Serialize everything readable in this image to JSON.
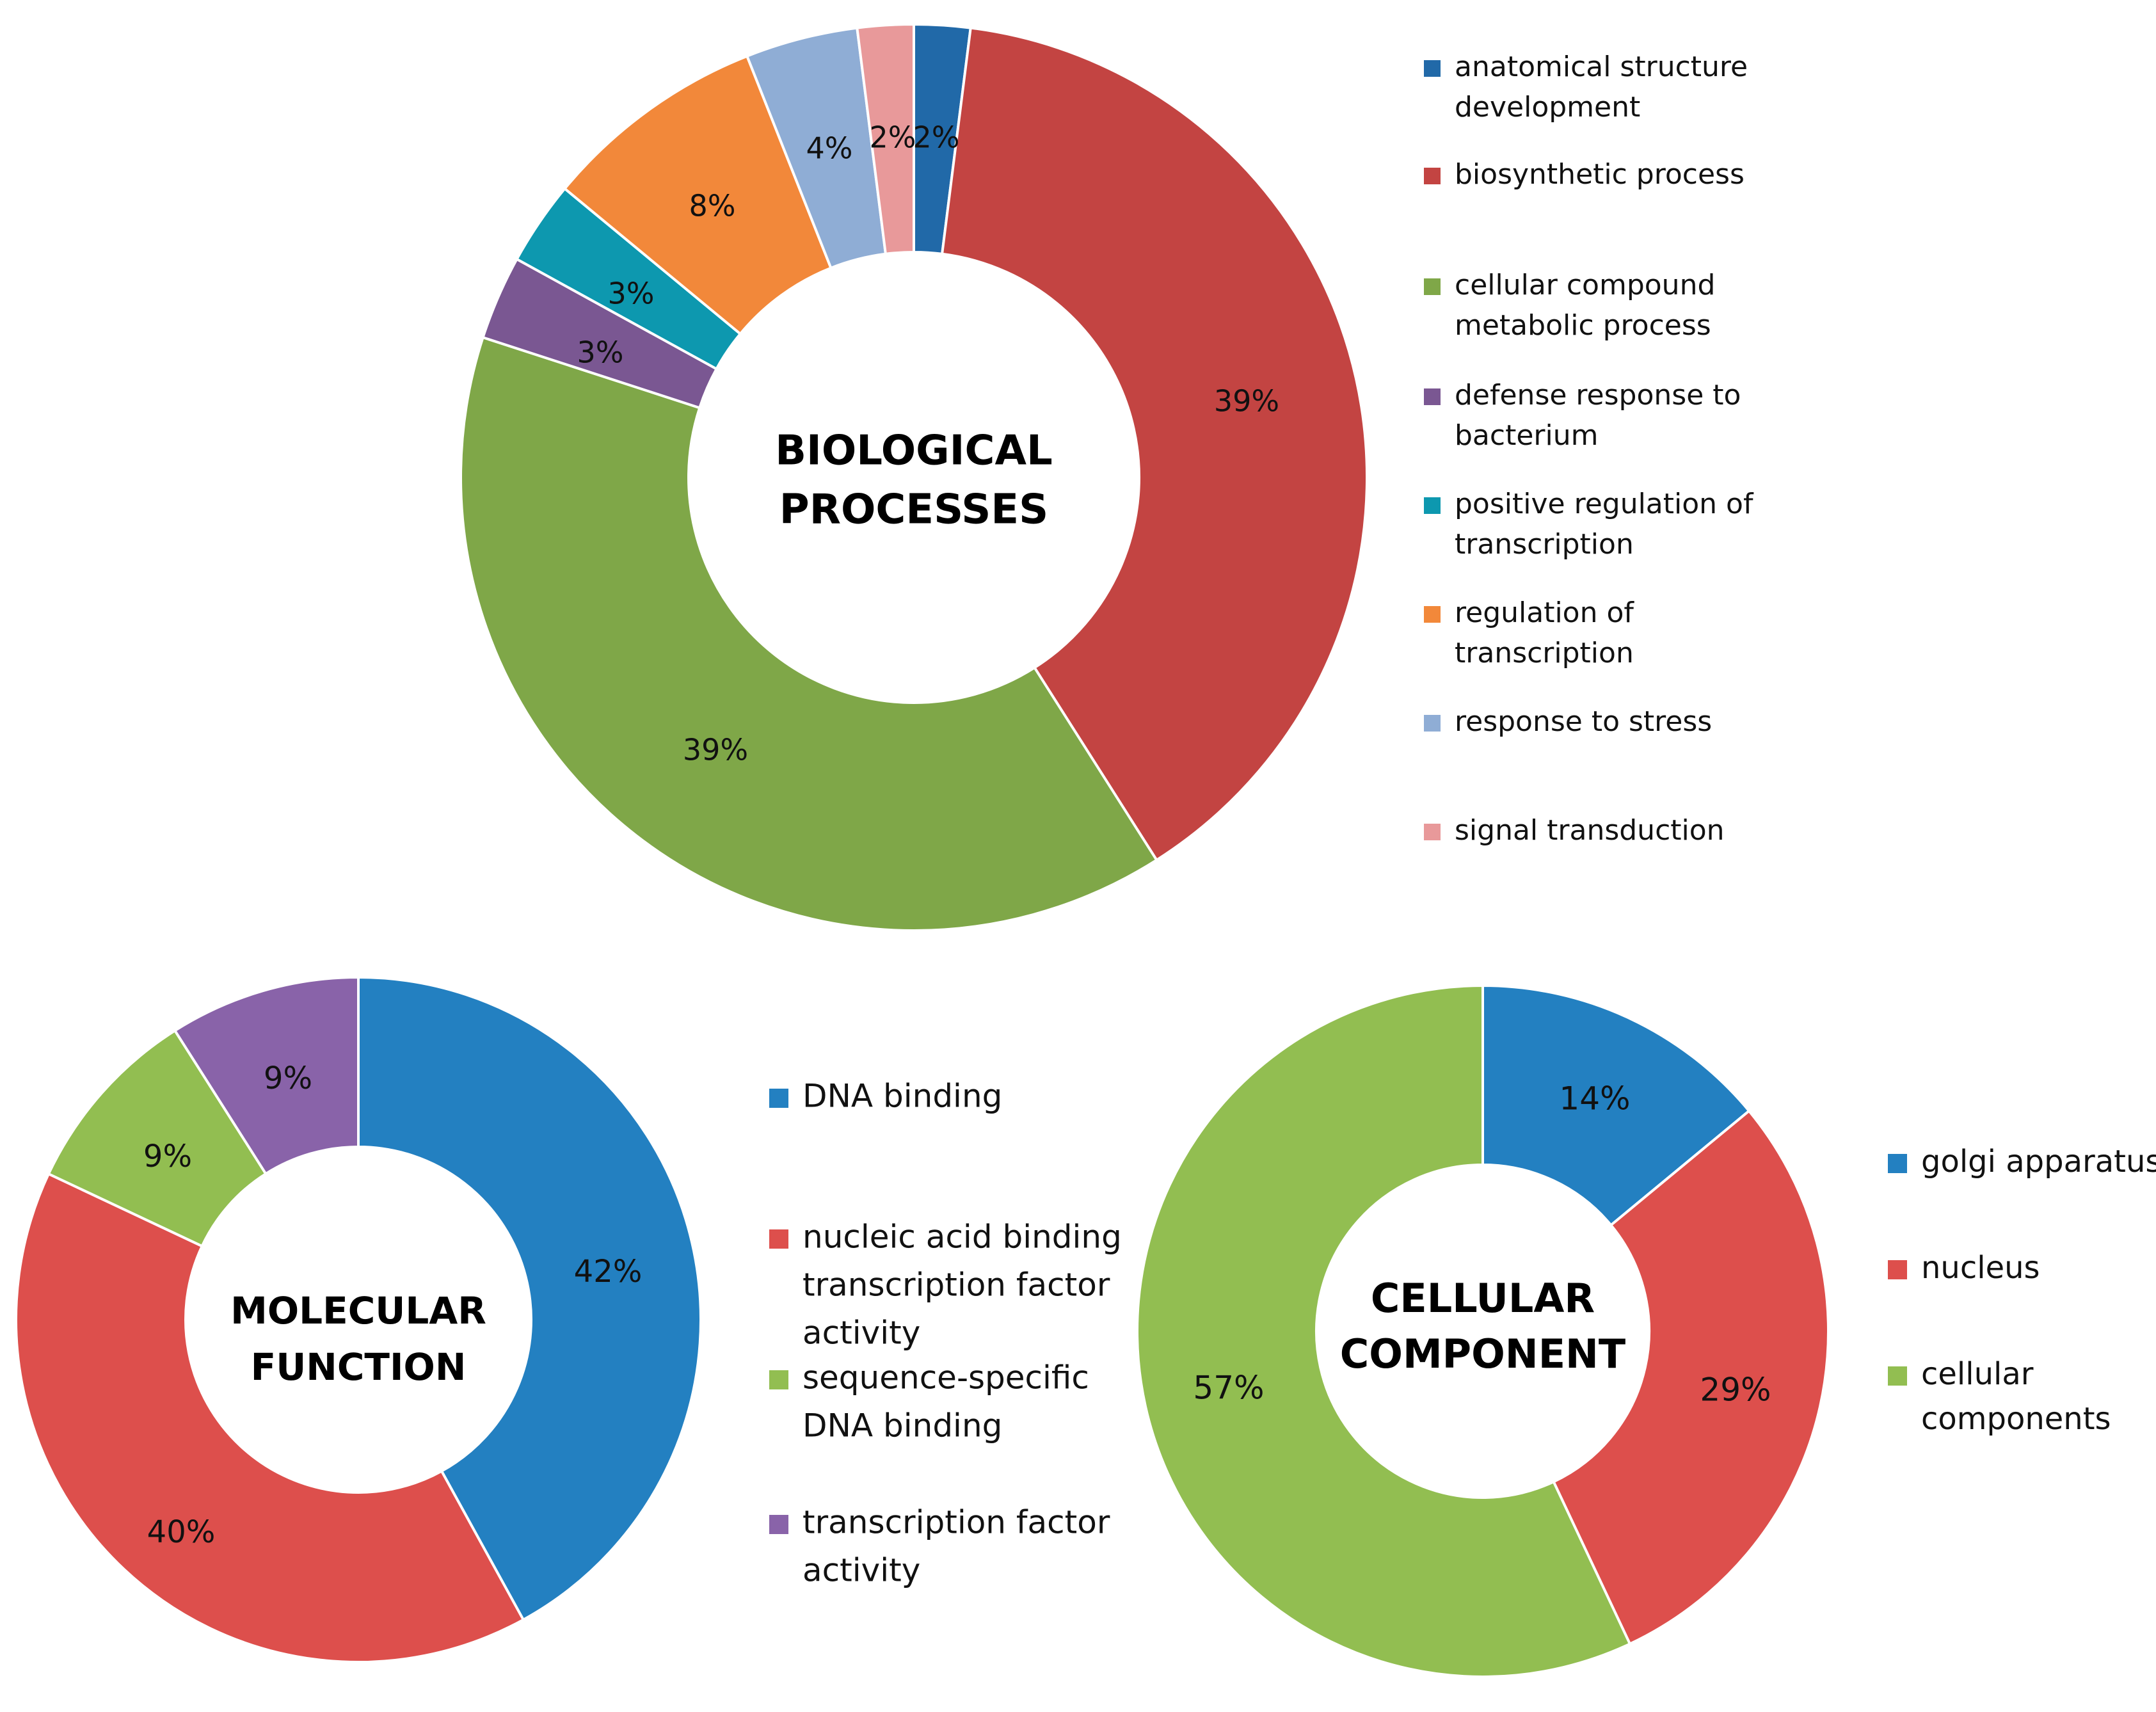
{
  "chart_data": [
    {
      "type": "pie",
      "variant": "donut",
      "title": "BIOLOGICAL PROCESSES",
      "title_lines": [
        "BIOLOGICAL",
        "PROCESSES"
      ],
      "legend_position": "right",
      "series": [
        {
          "name": "anatomical structure development",
          "legend_lines": [
            "anatomical structure",
            "development"
          ],
          "value": 2,
          "label": "2%",
          "color": "#2169A8"
        },
        {
          "name": "biosynthetic process",
          "legend_lines": [
            "biosynthetic process"
          ],
          "value": 39,
          "label": "39%",
          "color": "#C34442"
        },
        {
          "name": "cellular compound metabolic process",
          "legend_lines": [
            "cellular compound",
            "metabolic process"
          ],
          "value": 39,
          "label": "39%",
          "color": "#7FA748"
        },
        {
          "name": "defense response to bacterium",
          "legend_lines": [
            "defense response to",
            "bacterium"
          ],
          "value": 3,
          "label": "3%",
          "color": "#7A5792"
        },
        {
          "name": "positive regulation of transcription",
          "legend_lines": [
            "positive regulation of",
            "transcription"
          ],
          "value": 3,
          "label": "3%",
          "color": "#0D98AF"
        },
        {
          "name": "regulation of transcription",
          "legend_lines": [
            "regulation of",
            "transcription"
          ],
          "value": 8,
          "label": "8%",
          "color": "#F2883A"
        },
        {
          "name": "response to stress",
          "legend_lines": [
            "response to stress"
          ],
          "value": 4,
          "label": "4%",
          "color": "#8FADD5"
        },
        {
          "name": "signal transduction",
          "legend_lines": [
            "signal transduction"
          ],
          "value": 2,
          "label": "2%",
          "color": "#E8999A"
        }
      ]
    },
    {
      "type": "pie",
      "variant": "donut",
      "title": "MOLECULAR FUNCTION",
      "title_lines": [
        "MOLECULAR",
        "FUNCTION"
      ],
      "legend_position": "right",
      "series": [
        {
          "name": "DNA binding",
          "legend_lines": [
            "DNA binding"
          ],
          "value": 42,
          "label": "42%",
          "color": "#2380C1"
        },
        {
          "name": "nucleic acid binding transcription factor activity",
          "legend_lines": [
            "nucleic acid binding",
            "transcription factor",
            "activity"
          ],
          "value": 40,
          "label": "40%",
          "color": "#DD4F4C"
        },
        {
          "name": "sequence-specific DNA binding",
          "legend_lines": [
            "sequence-specific",
            "DNA binding"
          ],
          "value": 9,
          "label": "9%",
          "color": "#92BE51"
        },
        {
          "name": "transcription factor activity",
          "legend_lines": [
            "transcription factor",
            "activity"
          ],
          "value": 9,
          "label": "9%",
          "color": "#8963A9"
        }
      ]
    },
    {
      "type": "pie",
      "variant": "donut",
      "title": "CELLULAR COMPONENT",
      "title_lines": [
        "CELLULAR",
        "COMPONENT"
      ],
      "legend_position": "right",
      "series": [
        {
          "name": "golgi apparatus",
          "legend_lines": [
            "golgi apparatus"
          ],
          "value": 14,
          "label": "14%",
          "color": "#2380C1"
        },
        {
          "name": "nucleus",
          "legend_lines": [
            "nucleus"
          ],
          "value": 29,
          "label": "29%",
          "color": "#DD4F4C"
        },
        {
          "name": "cellular components",
          "legend_lines": [
            "cellular",
            "components"
          ],
          "value": 57,
          "label": "57%",
          "color": "#92BE51"
        }
      ]
    }
  ]
}
